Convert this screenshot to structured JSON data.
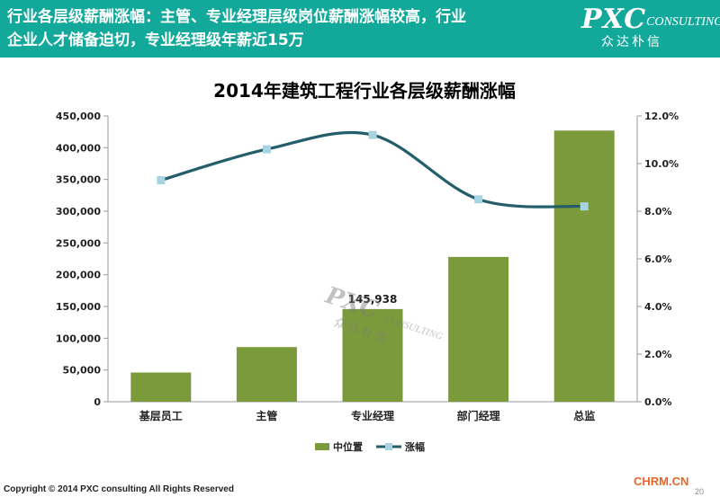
{
  "header": {
    "line1": "行业各层级薪酬涨幅：主管、专业经理层级岗位薪酬涨幅较高，行业",
    "line2": "企业人才储备迫切，专业经理级年薪近15万"
  },
  "logo": {
    "main": "PXC",
    "sub": "CONSULTING",
    "cn": "众达朴信"
  },
  "watermark": {
    "main": "PXC",
    "sub": "CONSULTING",
    "cn": "众达朴信"
  },
  "colors": {
    "header_bg": "#12a89a",
    "bar": "#7a9a3c",
    "line": "#235e6a",
    "marker": "#a7d3e3"
  },
  "chart_data": {
    "type": "bar",
    "title": "2014年建筑工程行业各层级薪酬涨幅",
    "categories": [
      "基层员工",
      "主管",
      "专业经理",
      "部门经理",
      "总监"
    ],
    "series": [
      {
        "name": "中位置",
        "type": "bar",
        "axis": "left",
        "values": [
          46000,
          86000,
          145938,
          228000,
          427000
        ]
      },
      {
        "name": "涨幅",
        "type": "line",
        "axis": "right",
        "values": [
          9.3,
          10.6,
          11.2,
          8.5,
          8.2
        ]
      }
    ],
    "data_labels": [
      {
        "category": "专业经理",
        "text": "145,938"
      }
    ],
    "ylim": [
      0,
      450000
    ],
    "y_ticks": [
      "0",
      "50,000",
      "100,000",
      "150,000",
      "200,000",
      "250,000",
      "300,000",
      "350,000",
      "400,000",
      "450,000"
    ],
    "y2lim": [
      0,
      12
    ],
    "y2_ticks": [
      "0.0%",
      "2.0%",
      "4.0%",
      "6.0%",
      "8.0%",
      "10.0%",
      "12.0%"
    ],
    "grid": false,
    "legend_position": "bottom",
    "xlabel": "",
    "ylabel": ""
  },
  "footer": {
    "copyright": "Copyright © 2014  PXC consulting All Rights Reserved",
    "site": "CHRM.CN",
    "page": "20"
  }
}
